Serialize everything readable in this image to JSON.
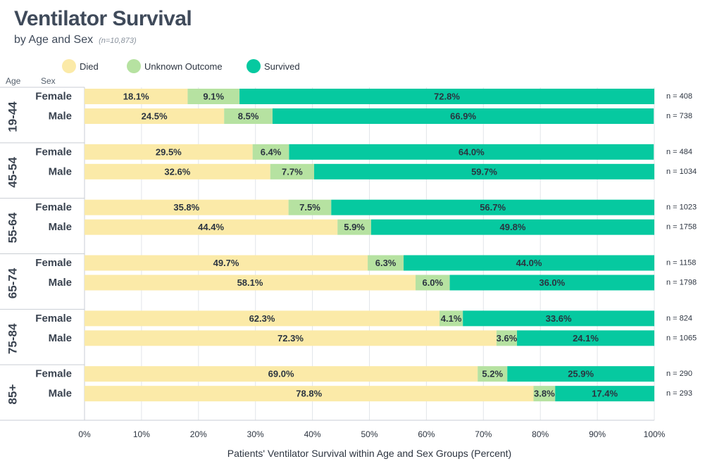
{
  "chart_data": {
    "type": "bar",
    "orientation": "horizontal",
    "stacked": true,
    "title": "Ventilator Survival",
    "subtitle": "by Age and Sex",
    "sample_note": "(n=10,873)",
    "xlabel": "Patients' Ventilator Survival within Age and Sex Groups (Percent)",
    "xlim": [
      0,
      100
    ],
    "xticks": [
      "0%",
      "10%",
      "20%",
      "30%",
      "40%",
      "50%",
      "60%",
      "70%",
      "80%",
      "90%",
      "100%"
    ],
    "row_header_age": "Age",
    "row_header_sex": "Sex",
    "legend_position": "top-left",
    "grid": true,
    "series": [
      {
        "name": "Died",
        "color": "#fbeaa8"
      },
      {
        "name": "Unknown Outcome",
        "color": "#b6e2a1"
      },
      {
        "name": "Survived",
        "color": "#06c9a0"
      }
    ],
    "groups": [
      {
        "age": "19-44",
        "rows": [
          {
            "sex": "Female",
            "values": [
              18.1,
              9.1,
              72.8
            ],
            "labels": [
              "18.1%",
              "9.1%",
              "72.8%"
            ],
            "n": "n = 408"
          },
          {
            "sex": "Male",
            "values": [
              24.5,
              8.5,
              66.9
            ],
            "labels": [
              "24.5%",
              "8.5%",
              "66.9%"
            ],
            "n": "n = 738"
          }
        ]
      },
      {
        "age": "45-54",
        "rows": [
          {
            "sex": "Female",
            "values": [
              29.5,
              6.4,
              64.0
            ],
            "labels": [
              "29.5%",
              "6.4%",
              "64.0%"
            ],
            "n": "n = 484"
          },
          {
            "sex": "Male",
            "values": [
              32.6,
              7.7,
              59.7
            ],
            "labels": [
              "32.6%",
              "7.7%",
              "59.7%"
            ],
            "n": "n = 1034"
          }
        ]
      },
      {
        "age": "55-64",
        "rows": [
          {
            "sex": "Female",
            "values": [
              35.8,
              7.5,
              56.7
            ],
            "labels": [
              "35.8%",
              "7.5%",
              "56.7%"
            ],
            "n": "n = 1023"
          },
          {
            "sex": "Male",
            "values": [
              44.4,
              5.9,
              49.8
            ],
            "labels": [
              "44.4%",
              "5.9%",
              "49.8%"
            ],
            "n": "n = 1758"
          }
        ]
      },
      {
        "age": "65-74",
        "rows": [
          {
            "sex": "Female",
            "values": [
              49.7,
              6.3,
              44.0
            ],
            "labels": [
              "49.7%",
              "6.3%",
              "44.0%"
            ],
            "n": "n = 1158"
          },
          {
            "sex": "Male",
            "values": [
              58.1,
              6.0,
              36.0
            ],
            "labels": [
              "58.1%",
              "6.0%",
              "36.0%"
            ],
            "n": "n = 1798"
          }
        ]
      },
      {
        "age": "75-84",
        "rows": [
          {
            "sex": "Female",
            "values": [
              62.3,
              4.1,
              33.6
            ],
            "labels": [
              "62.3%",
              "4.1%",
              "33.6%"
            ],
            "n": "n = 824"
          },
          {
            "sex": "Male",
            "values": [
              72.3,
              3.6,
              24.1
            ],
            "labels": [
              "72.3%",
              "3.6%",
              "24.1%"
            ],
            "n": "n = 1065"
          }
        ]
      },
      {
        "age": "85+",
        "rows": [
          {
            "sex": "Female",
            "values": [
              69.0,
              5.2,
              25.9
            ],
            "labels": [
              "69.0%",
              "5.2%",
              "25.9%"
            ],
            "n": "n = 290"
          },
          {
            "sex": "Male",
            "values": [
              78.8,
              3.8,
              17.4
            ],
            "labels": [
              "78.8%",
              "3.8%",
              "17.4%"
            ],
            "n": "n = 293"
          }
        ]
      }
    ]
  }
}
